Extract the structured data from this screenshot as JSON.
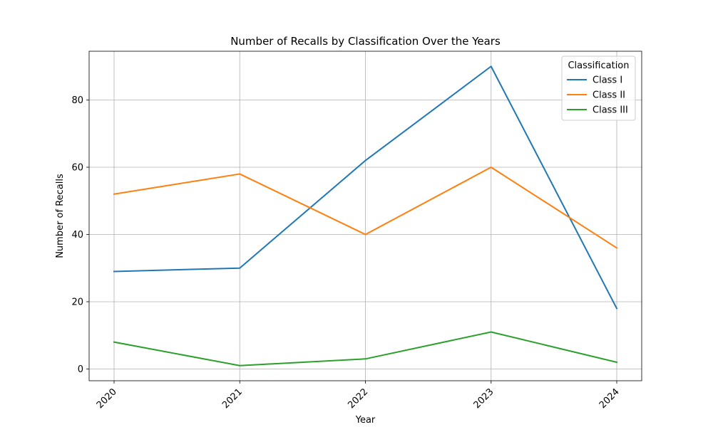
{
  "chart_data": {
    "type": "line",
    "title": "Number of Recalls by Classification Over the Years",
    "xlabel": "Year",
    "ylabel": "Number of Recalls",
    "categories": [
      "2020",
      "2021",
      "2022",
      "2023",
      "2024"
    ],
    "y_ticks": [
      0,
      20,
      40,
      60,
      80
    ],
    "ylim": [
      -3.5,
      94.5
    ],
    "grid": true,
    "x_tick_rotation_deg": 45,
    "legend": {
      "title": "Classification",
      "placement": "top-right"
    },
    "series": [
      {
        "name": "Class I",
        "color": "#1f77b4",
        "values": [
          29,
          30,
          62,
          90,
          18
        ]
      },
      {
        "name": "Class II",
        "color": "#ff7f0e",
        "values": [
          52,
          58,
          40,
          60,
          36
        ]
      },
      {
        "name": "Class III",
        "color": "#2ca02c",
        "values": [
          8,
          1,
          3,
          11,
          2
        ]
      }
    ]
  }
}
